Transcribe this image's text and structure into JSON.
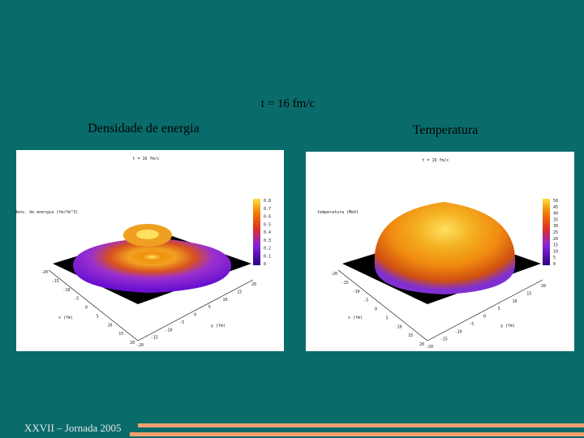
{
  "slide": {
    "title": "t = 16 fm/c",
    "footer": "XXVII – Jornada 2005",
    "panels": [
      {
        "heading": "Densidade de energia",
        "plot_title": "t = 16 fm/c",
        "zlabel": "dens. de energia (fm/fm^3)",
        "xlabel": "x (fm)",
        "ylabel": "y (fm)",
        "colorbar_ticks": [
          "0.8",
          "0.7",
          "0.6",
          "0.5",
          "0.4",
          "0.3",
          "0.2",
          "0.1",
          "0"
        ],
        "axis_ticks": [
          "-20",
          "-15",
          "-10",
          "-5",
          "0",
          "5",
          "10",
          "15",
          "20"
        ]
      },
      {
        "heading": "Temperatura",
        "plot_title": "t = 16 fm/c",
        "zlabel": "temperatura (MeV)",
        "xlabel": "x (fm)",
        "ylabel": "y (fm)",
        "colorbar_ticks": [
          "50",
          "45",
          "40",
          "35",
          "30",
          "25",
          "20",
          "15",
          "10",
          "5",
          "0"
        ],
        "axis_ticks": [
          "-20",
          "-15",
          "-10",
          "-5",
          "0",
          "5",
          "10",
          "15",
          "20"
        ]
      }
    ]
  }
}
